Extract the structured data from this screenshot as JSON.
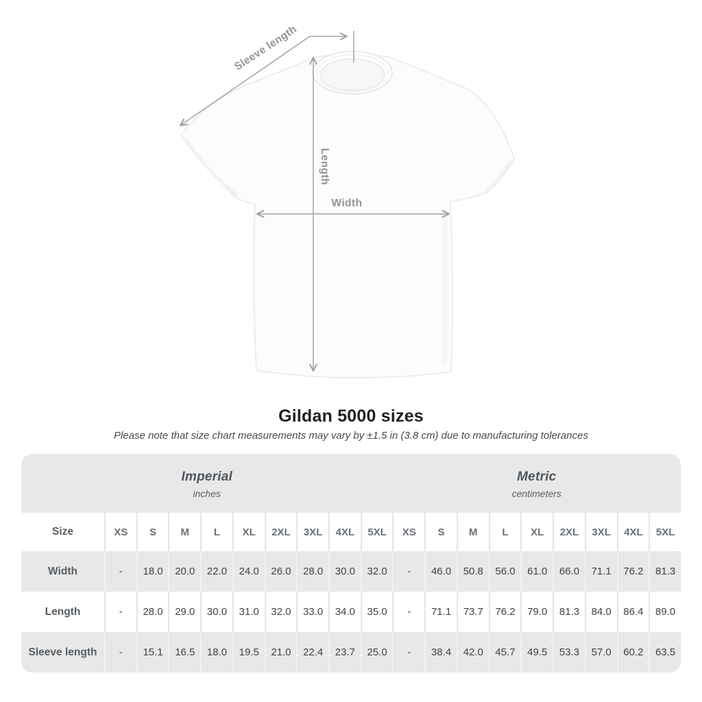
{
  "diagram": {
    "sleeve_length_label": "Sleeve length",
    "length_label": "Length",
    "width_label": "Width"
  },
  "title": "Gildan 5000 sizes",
  "subtitle": "Please note that size chart measurements may vary by ±1.5 in (3.8 cm) due to manufacturing tolerances",
  "table": {
    "size_header": "Size",
    "unit_groups": [
      {
        "label": "Imperial",
        "sublabel": "inches"
      },
      {
        "label": "Metric",
        "sublabel": "centimeters"
      }
    ],
    "sizes": [
      "XS",
      "S",
      "M",
      "L",
      "XL",
      "2XL",
      "3XL",
      "4XL",
      "5XL"
    ],
    "rows": [
      {
        "label": "Width",
        "imperial": [
          "-",
          "18.0",
          "20.0",
          "22.0",
          "24.0",
          "26.0",
          "28.0",
          "30.0",
          "32.0"
        ],
        "metric": [
          "-",
          "46.0",
          "50.8",
          "56.0",
          "61.0",
          "66.0",
          "71.1",
          "76.2",
          "81.3"
        ]
      },
      {
        "label": "Length",
        "imperial": [
          "-",
          "28.0",
          "29.0",
          "30.0",
          "31.0",
          "32.0",
          "33.0",
          "34.0",
          "35.0"
        ],
        "metric": [
          "-",
          "71.1",
          "73.7",
          "76.2",
          "79.0",
          "81.3",
          "84.0",
          "86.4",
          "89.0"
        ]
      },
      {
        "label": "Sleeve length",
        "imperial": [
          "-",
          "15.1",
          "16.5",
          "18.0",
          "19.5",
          "21.0",
          "22.4",
          "23.7",
          "25.0"
        ],
        "metric": [
          "-",
          "38.4",
          "42.0",
          "45.7",
          "49.5",
          "53.3",
          "57.0",
          "60.2",
          "63.5"
        ]
      }
    ]
  },
  "colors": {
    "band_gray": "#e8e8e8",
    "stripe_gray": "#e8e8e8",
    "separator_on_white": "#e4e4e4",
    "separator_on_gray": "#f3f3f3",
    "measure_line": "#9fa3a6",
    "measure_label": "#8f9499",
    "header_text": "#6a7075",
    "value_text": "#3f4245",
    "title_text": "#202124"
  },
  "chart_data": {
    "type": "table",
    "title": "Gildan 5000 sizes",
    "note": "Please note that size chart measurements may vary by ±1.5 in (3.8 cm) due to manufacturing tolerances",
    "unit_groups": [
      {
        "label": "Imperial",
        "unit": "inches"
      },
      {
        "label": "Metric",
        "unit": "centimeters"
      }
    ],
    "columns": [
      "Size",
      "XS",
      "S",
      "M",
      "L",
      "XL",
      "2XL",
      "3XL",
      "4XL",
      "5XL"
    ],
    "rows": [
      {
        "measurement": "Width",
        "imperial_inches": [
          "-",
          18.0,
          20.0,
          22.0,
          24.0,
          26.0,
          28.0,
          30.0,
          32.0
        ],
        "metric_centimeters": [
          "-",
          46.0,
          50.8,
          56.0,
          61.0,
          66.0,
          71.1,
          76.2,
          81.3
        ]
      },
      {
        "measurement": "Length",
        "imperial_inches": [
          "-",
          28.0,
          29.0,
          30.0,
          31.0,
          32.0,
          33.0,
          34.0,
          35.0
        ],
        "metric_centimeters": [
          "-",
          71.1,
          73.7,
          76.2,
          79.0,
          81.3,
          84.0,
          86.4,
          89.0
        ]
      },
      {
        "measurement": "Sleeve length",
        "imperial_inches": [
          "-",
          15.1,
          16.5,
          18.0,
          19.5,
          21.0,
          22.4,
          23.7,
          25.0
        ],
        "metric_centimeters": [
          "-",
          38.4,
          42.0,
          45.7,
          49.5,
          53.3,
          57.0,
          60.2,
          63.5
        ]
      }
    ]
  }
}
